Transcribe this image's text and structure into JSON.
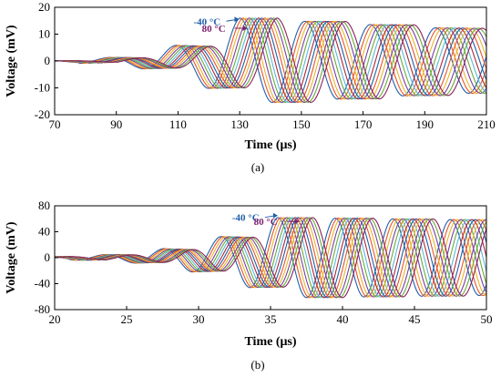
{
  "chart_data": [
    {
      "type": "line",
      "panel_label": "(a)",
      "xlabel": "Time (μs)",
      "ylabel": "Voltage (mV)",
      "xlim": [
        70,
        210
      ],
      "ylim": [
        -20,
        20
      ],
      "xticks": [
        "70",
        "90",
        "110",
        "130",
        "150",
        "170",
        "190",
        "210"
      ],
      "yticks": [
        "20",
        "10",
        "0",
        "-10",
        "-20"
      ],
      "annotations": [
        {
          "text": "-40 °C",
          "color": "#1f5fa8",
          "x": 129.8,
          "y": 15.5
        },
        {
          "text": "80 °C",
          "color": "#7a1f6e",
          "x": 132.5,
          "y": 12.2
        }
      ],
      "series_count": 13,
      "signal": {
        "start_time": 78,
        "wave_period": 21.2,
        "peak_time": 130,
        "peak_amplitude": 16,
        "tail_amplitude": 12,
        "time_shift_per_series": 1.0
      },
      "grid": false
    },
    {
      "type": "line",
      "panel_label": "(b)",
      "xlabel": "Time (μs)",
      "ylabel": "Voltage (mV)",
      "xlim": [
        20,
        50
      ],
      "ylim": [
        -80,
        80
      ],
      "xticks": [
        "20",
        "25",
        "30",
        "35",
        "40",
        "45",
        "50"
      ],
      "yticks": [
        "80",
        "40",
        "0",
        "-40",
        "-80"
      ],
      "annotations": [
        {
          "text": "-40 °C",
          "color": "#1f5fa8",
          "x": 35.5,
          "y": 65
        },
        {
          "text": "80 °C",
          "color": "#7a1f6e",
          "x": 37.0,
          "y": 56
        }
      ],
      "series_count": 13,
      "signal": {
        "start_time": 21,
        "wave_period": 4.0,
        "peak_time": 35.5,
        "peak_amplitude": 62,
        "tail_amplitude": 58,
        "time_shift_per_series": 0.2
      },
      "grid": false
    }
  ],
  "series_colors": [
    "#1f5fa8",
    "#e8542a",
    "#e8b52a",
    "#7a3fa0",
    "#6aaa3a",
    "#5ab8d8",
    "#a8283a",
    "#1f5fa8",
    "#e8542a",
    "#e8b52a",
    "#7a3fa0",
    "#6aaa3a",
    "#8a1f5e"
  ]
}
